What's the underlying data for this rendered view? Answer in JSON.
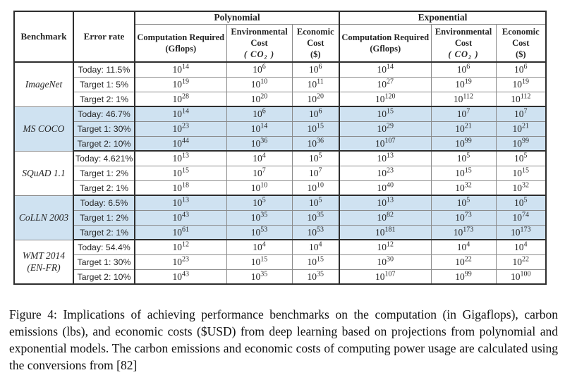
{
  "colors": {
    "highlight_row": "#cfe2f1",
    "grid_line": "#8a8a8a",
    "heavy_line": "#2e2e2e",
    "text_color": "#262626"
  },
  "page": {
    "caption": "Figure 4: Implications of achieving performance benchmarks on the computation (in Gigaflops), carbon emissions (lbs), and economic costs ($USD) from deep learning based on projections from polynomial and exponential models. The carbon emissions and economic costs of computing power usage are calculated using the conversions from [82]"
  },
  "table": {
    "base": "10",
    "header": {
      "benchmark": "Benchmark",
      "error_rate": "Error rate",
      "groups": [
        {
          "label": "Polynomial"
        },
        {
          "label": "Exponential"
        }
      ],
      "subcolumns": [
        {
          "lines": [
            "Computation Required",
            "(Gflops)"
          ]
        },
        {
          "lines": [
            "Environmental",
            "Cost",
            "( CO₂ )"
          ]
        },
        {
          "lines": [
            "Economic",
            "Cost",
            "($)"
          ]
        }
      ]
    },
    "groups": [
      {
        "benchmark": "ImageNet",
        "highlighted": false,
        "rows": [
          {
            "error_rate": "Today: 11.5%",
            "exponents": [
              14,
              6,
              6,
              14,
              6,
              6
            ]
          },
          {
            "error_rate": "Target 1: 5%",
            "exponents": [
              19,
              10,
              11,
              27,
              19,
              19
            ]
          },
          {
            "error_rate": "Target 2: 1%",
            "exponents": [
              28,
              20,
              20,
              120,
              112,
              112
            ]
          }
        ]
      },
      {
        "benchmark": "MS COCO",
        "highlighted": true,
        "rows": [
          {
            "error_rate": "Today: 46.7%",
            "exponents": [
              14,
              6,
              6,
              15,
              7,
              7
            ]
          },
          {
            "error_rate": "Target 1: 30%",
            "exponents": [
              23,
              14,
              15,
              29,
              21,
              21
            ]
          },
          {
            "error_rate": "Target 2: 10%",
            "exponents": [
              44,
              36,
              36,
              107,
              99,
              99
            ]
          }
        ]
      },
      {
        "benchmark": "SQuAD 1.1",
        "highlighted": false,
        "rows": [
          {
            "error_rate": "Today: 4.621%",
            "exponents": [
              13,
              4,
              5,
              13,
              5,
              5
            ]
          },
          {
            "error_rate": "Target 1: 2%",
            "exponents": [
              15,
              7,
              7,
              23,
              15,
              15
            ]
          },
          {
            "error_rate": "Target 2: 1%",
            "exponents": [
              18,
              10,
              10,
              40,
              32,
              32
            ]
          }
        ]
      },
      {
        "benchmark": "CoLLN 2003",
        "highlighted": true,
        "rows": [
          {
            "error_rate": "Today: 6.5%",
            "exponents": [
              13,
              5,
              5,
              13,
              5,
              5
            ]
          },
          {
            "error_rate": "Target 1: 2%",
            "exponents": [
              43,
              35,
              35,
              82,
              73,
              74
            ]
          },
          {
            "error_rate": "Target 2: 1%",
            "exponents": [
              61,
              53,
              53,
              181,
              173,
              173
            ]
          }
        ]
      },
      {
        "benchmark": "WMT 2014 (EN-FR)",
        "highlighted": false,
        "rows": [
          {
            "error_rate": "Today: 54.4%",
            "exponents": [
              12,
              4,
              4,
              12,
              4,
              4
            ]
          },
          {
            "error_rate": "Target 1: 30%",
            "exponents": [
              23,
              15,
              15,
              30,
              22,
              22
            ]
          },
          {
            "error_rate": "Target 2: 10%",
            "exponents": [
              43,
              35,
              35,
              107,
              99,
              100
            ]
          }
        ]
      }
    ]
  }
}
